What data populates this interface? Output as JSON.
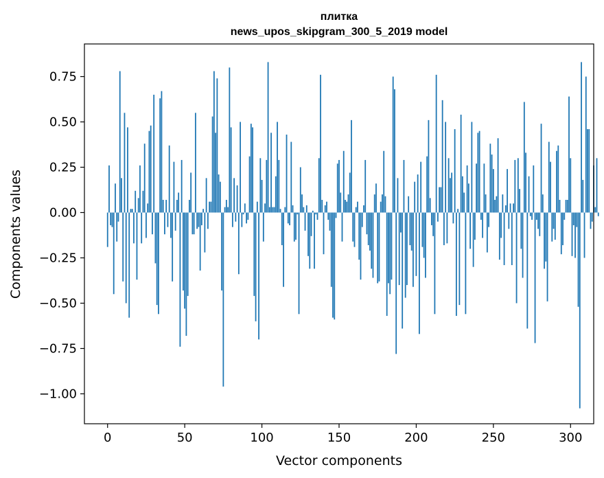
{
  "chart_data": {
    "type": "bar",
    "title_line1": "плитка",
    "title_line2": "news_upos_skipgram_300_5_2019 model",
    "xlabel": "Vector components",
    "ylabel": "Components values",
    "xlim": [
      -15,
      315
    ],
    "ylim": [
      -1.165,
      0.93
    ],
    "x_ticks": [
      0,
      50,
      100,
      150,
      200,
      250,
      300
    ],
    "x_tick_labels": [
      "0",
      "50",
      "100",
      "150",
      "200",
      "250",
      "300"
    ],
    "y_ticks": [
      0.75,
      0.5,
      0.25,
      0.0,
      -0.25,
      -0.5,
      -0.75,
      -1.0
    ],
    "y_tick_labels": [
      "0.75",
      "0.50",
      "0.25",
      "0.00",
      "−0.25",
      "−0.50",
      "−0.75",
      "−1.00"
    ],
    "bar_color": "#1f77b4",
    "values": [
      -0.19,
      0.26,
      -0.07,
      -0.08,
      -0.45,
      0.16,
      -0.16,
      -0.05,
      0.78,
      0.19,
      -0.38,
      0.55,
      -0.5,
      0.47,
      -0.58,
      0.02,
      0.02,
      -0.17,
      0.12,
      -0.37,
      0.08,
      0.26,
      -0.17,
      0.12,
      0.38,
      -0.14,
      0.05,
      0.45,
      0.48,
      -0.12,
      0.65,
      -0.28,
      -0.51,
      -0.56,
      0.63,
      0.67,
      0.07,
      -0.12,
      0.07,
      -0.08,
      0.37,
      -0.14,
      -0.38,
      0.28,
      -0.1,
      0.07,
      0.11,
      -0.74,
      0.29,
      -0.43,
      -0.53,
      -0.68,
      -0.46,
      0.07,
      0.22,
      -0.12,
      -0.12,
      0.55,
      -0.09,
      -0.08,
      -0.32,
      -0.07,
      0.02,
      -0.22,
      0.19,
      -0.09,
      0.06,
      0.06,
      0.53,
      0.78,
      0.44,
      0.74,
      0.21,
      0.17,
      -0.43,
      -0.96,
      0.03,
      0.07,
      0.03,
      0.8,
      0.47,
      -0.08,
      0.19,
      -0.05,
      0.15,
      -0.34,
      0.5,
      -0.08,
      -0.01,
      0.05,
      -0.06,
      -0.04,
      0.31,
      0.49,
      0.47,
      -0.46,
      -0.6,
      0.06,
      -0.7,
      0.3,
      0.18,
      -0.16,
      0.05,
      0.29,
      0.83,
      0.03,
      0.44,
      0.03,
      0.03,
      0.2,
      0.5,
      0.29,
      0.02,
      -0.18,
      -0.41,
      0.03,
      0.43,
      -0.06,
      -0.07,
      0.39,
      0.04,
      -0.16,
      -0.15,
      -0.01,
      -0.56,
      0.25,
      0.1,
      0.03,
      -0.1,
      0.04,
      -0.24,
      -0.31,
      -0.13,
      0.01,
      -0.31,
      -0.01,
      -0.04,
      0.3,
      0.76,
      0.07,
      -0.23,
      0.04,
      0.06,
      -0.04,
      -0.1,
      -0.41,
      -0.58,
      -0.59,
      -0.03,
      0.27,
      0.29,
      0.11,
      -0.16,
      0.34,
      0.07,
      0.06,
      0.1,
      0.22,
      0.51,
      -0.16,
      -0.19,
      0.03,
      0.06,
      -0.26,
      -0.37,
      -0.08,
      0.04,
      0.29,
      -0.12,
      -0.18,
      -0.21,
      -0.31,
      -0.36,
      0.1,
      0.16,
      -0.39,
      -0.38,
      0.06,
      0.1,
      0.34,
      0.09,
      -0.57,
      -0.39,
      -0.45,
      -0.37,
      0.75,
      0.68,
      -0.78,
      0.19,
      -0.4,
      -0.11,
      -0.64,
      0.29,
      -0.47,
      -0.4,
      0.09,
      -0.18,
      -0.21,
      -0.41,
      0.17,
      -0.35,
      0.21,
      -0.67,
      0.28,
      -0.19,
      -0.25,
      -0.36,
      0.31,
      0.51,
      0.08,
      -0.07,
      -0.13,
      -0.56,
      0.76,
      -0.05,
      0.14,
      0.14,
      0.62,
      -0.18,
      0.5,
      -0.17,
      0.3,
      0.19,
      0.22,
      -0.06,
      0.46,
      -0.57,
      0.02,
      -0.51,
      0.54,
      0.2,
      0.11,
      -0.56,
      0.26,
      0.16,
      -0.2,
      0.5,
      -0.3,
      -0.15,
      0.27,
      0.44,
      0.45,
      -0.04,
      -0.14,
      0.27,
      0.1,
      -0.22,
      -0.08,
      0.38,
      0.32,
      0.24,
      0.07,
      0.09,
      0.41,
      -0.26,
      -0.14,
      0.1,
      -0.29,
      0.04,
      0.24,
      -0.09,
      0.05,
      -0.29,
      0.05,
      0.29,
      -0.5,
      0.3,
      0.13,
      -0.2,
      -0.36,
      0.61,
      0.33,
      -0.64,
      0.2,
      -0.02,
      -0.04,
      0.26,
      -0.72,
      -0.04,
      -0.09,
      -0.13,
      0.49,
      0.1,
      -0.31,
      -0.27,
      -0.49,
      0.39,
      0.28,
      -0.16,
      -0.09,
      -0.15,
      0.34,
      0.37,
      0.07,
      -0.23,
      -0.18,
      -0.04,
      0.07,
      0.07,
      0.64,
      0.3,
      -0.24,
      -0.07,
      -0.25,
      -0.08,
      -0.52,
      -1.08,
      0.83,
      0.18,
      -0.25,
      0.75,
      0.46,
      0.46,
      -0.09,
      -0.05,
      0.26,
      0.03,
      0.3,
      -0.02
    ]
  }
}
